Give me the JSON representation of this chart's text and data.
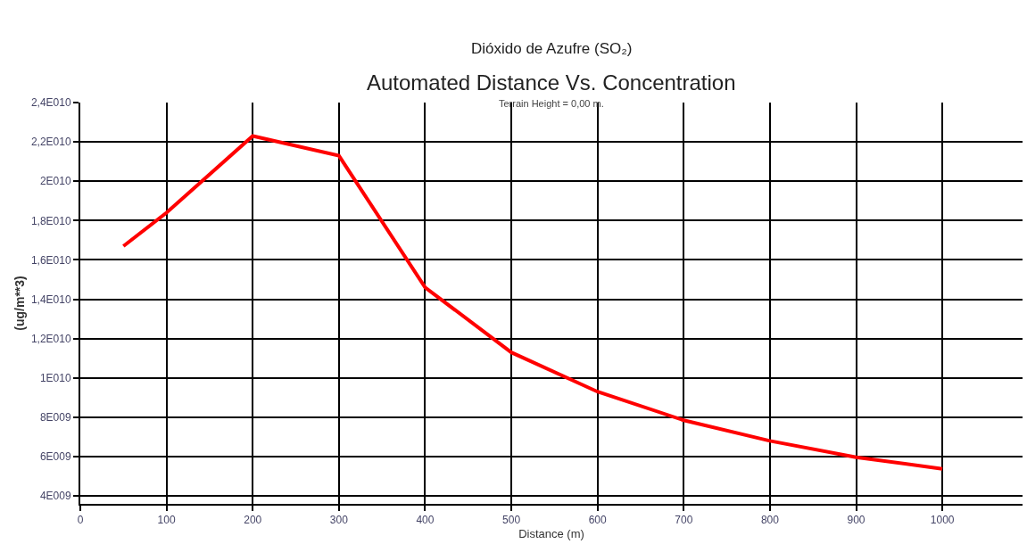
{
  "chart_data": {
    "type": "line",
    "title": "Automated Distance Vs. Concentration",
    "subtitle": "Terrain Height = 0,00 m.",
    "annotations": [
      "Dióxido de Azufre (SO₂)"
    ],
    "xlabel": "Distance (m)",
    "ylabel": "(ug/m**3)",
    "x": [
      50,
      100,
      200,
      300,
      400,
      500,
      600,
      700,
      800,
      900,
      1000
    ],
    "series": [
      {
        "color": "#ff0000",
        "values": [
          16700000000,
          18400000000,
          22300000000,
          21300000000,
          14600000000,
          11300000000,
          9300000000,
          7850000000,
          6800000000,
          5970000000,
          5380000000
        ]
      }
    ],
    "xlim": [
      0,
      1093
    ],
    "xticks": [
      0,
      100,
      200,
      300,
      400,
      500,
      600,
      700,
      800,
      900,
      1000
    ],
    "ylim": [
      3600000000,
      24000000000
    ],
    "yticks": [
      {
        "value": 4000000000,
        "label": "4E009"
      },
      {
        "value": 6000000000,
        "label": "6E009"
      },
      {
        "value": 8000000000,
        "label": "8E009"
      },
      {
        "value": 10000000000,
        "label": "1E010"
      },
      {
        "value": 12000000000,
        "label": "1,2E010"
      },
      {
        "value": 14000000000,
        "label": "1,4E010"
      },
      {
        "value": 16000000000,
        "label": "1,6E010"
      },
      {
        "value": 18000000000,
        "label": "1,8E010"
      },
      {
        "value": 20000000000,
        "label": "2E010"
      },
      {
        "value": 22000000000,
        "label": "2,2E010"
      },
      {
        "value": 24000000000,
        "label": "2,4E010"
      }
    ],
    "grid": true,
    "marker": "none",
    "line_style": "solid"
  }
}
